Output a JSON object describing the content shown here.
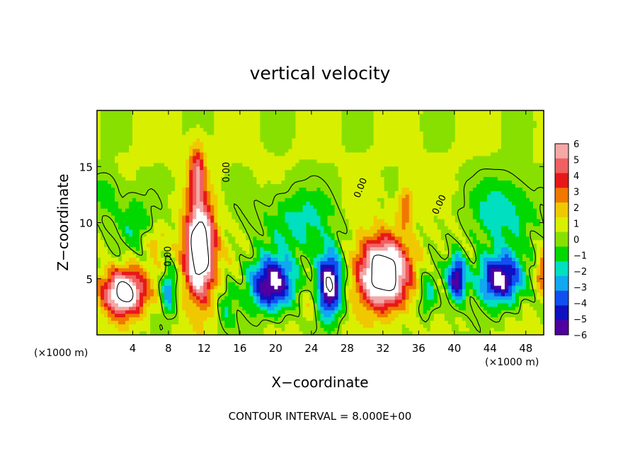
{
  "chart_data": {
    "type": "heatmap",
    "title": "vertical velocity",
    "xlabel": "X−coordinate",
    "ylabel": "Z−coordinate",
    "x_unit_left": "(×1000 m)",
    "x_unit_right": "(×1000 m)",
    "footer": "CONTOUR INTERVAL = 8.000E+00",
    "xlim": [
      0,
      50
    ],
    "ylim": [
      0,
      20
    ],
    "x_ticks": [
      4,
      8,
      12,
      16,
      20,
      24,
      28,
      32,
      36,
      40,
      44,
      48
    ],
    "y_ticks": [
      5,
      10,
      15
    ],
    "contour_labels": [
      {
        "text": "0.00",
        "x": 14.8,
        "y": 14.5,
        "rotate": -90
      },
      {
        "text": "0.00",
        "x": 8.3,
        "y": 7.0,
        "rotate": -90
      },
      {
        "text": "0.00",
        "x": 29.8,
        "y": 13.0,
        "rotate": -68
      },
      {
        "text": "0.00",
        "x": 38.6,
        "y": 11.5,
        "rotate": -65
      }
    ],
    "colorbar": {
      "labels": [
        "6",
        "5",
        "4",
        "3",
        "2",
        "1",
        "0",
        "−1",
        "−2",
        "−3",
        "−4",
        "−5",
        "−6"
      ],
      "colors": [
        "#f4a8a8",
        "#f06060",
        "#e81818",
        "#f07800",
        "#f0c800",
        "#d8f000",
        "#88e000",
        "#00d800",
        "#00e0c0",
        "#10a8f0",
        "#1050f0",
        "#1010c0",
        "#5000a0"
      ]
    },
    "updrafts": [
      {
        "x": 11.5,
        "z": 7.5,
        "sx": 1.6,
        "sz": 4.0,
        "w": 11
      },
      {
        "x": 11.2,
        "z": 14.5,
        "sx": 0.9,
        "sz": 2.5,
        "w": 4.5
      },
      {
        "x": 3.0,
        "z": 3.8,
        "sx": 2.3,
        "sz": 2.0,
        "w": 9
      },
      {
        "x": 32.0,
        "z": 5.5,
        "sx": 2.8,
        "sz": 3.0,
        "w": 10
      },
      {
        "x": 34.5,
        "z": 11.5,
        "sx": 0.8,
        "sz": 1.8,
        "w": 3
      },
      {
        "x": 6.5,
        "z": 8.5,
        "sx": 1.0,
        "sz": 1.0,
        "w": 1.5
      },
      {
        "x": 49.8,
        "z": 5.5,
        "sx": 0.6,
        "sz": 1.5,
        "w": 3.5
      },
      {
        "x": 24.0,
        "z": 3.0,
        "sx": 1.0,
        "sz": 1.5,
        "w": 1.5
      }
    ],
    "downdrafts": [
      {
        "x": 26.0,
        "z": 4.5,
        "sx": 1.4,
        "sz": 2.8,
        "w": -9
      },
      {
        "x": 19.5,
        "z": 4.5,
        "sx": 2.5,
        "sz": 2.3,
        "w": -7.5
      },
      {
        "x": 40.3,
        "z": 5.0,
        "sx": 1.0,
        "sz": 2.0,
        "w": -7
      },
      {
        "x": 45.0,
        "z": 5.0,
        "sx": 2.4,
        "sz": 2.2,
        "w": -7.5
      },
      {
        "x": 8.0,
        "z": 4.0,
        "sx": 0.8,
        "sz": 2.0,
        "w": -4
      },
      {
        "x": 45.5,
        "z": 11.0,
        "sx": 3.5,
        "sz": 3.0,
        "w": -3
      },
      {
        "x": 22.5,
        "z": 10.0,
        "sx": 4.0,
        "sz": 3.0,
        "w": -2.5
      },
      {
        "x": 4.0,
        "z": 10.0,
        "sx": 2.0,
        "sz": 2.5,
        "w": -2
      },
      {
        "x": 1.0,
        "z": 12.5,
        "sx": 1.5,
        "sz": 2.0,
        "w": -2
      },
      {
        "x": 14.5,
        "z": 2.5,
        "sx": 1.0,
        "sz": 2.0,
        "w": -2
      },
      {
        "x": 37.0,
        "z": 3.5,
        "sx": 1.0,
        "sz": 2.0,
        "w": -2.5
      }
    ]
  }
}
